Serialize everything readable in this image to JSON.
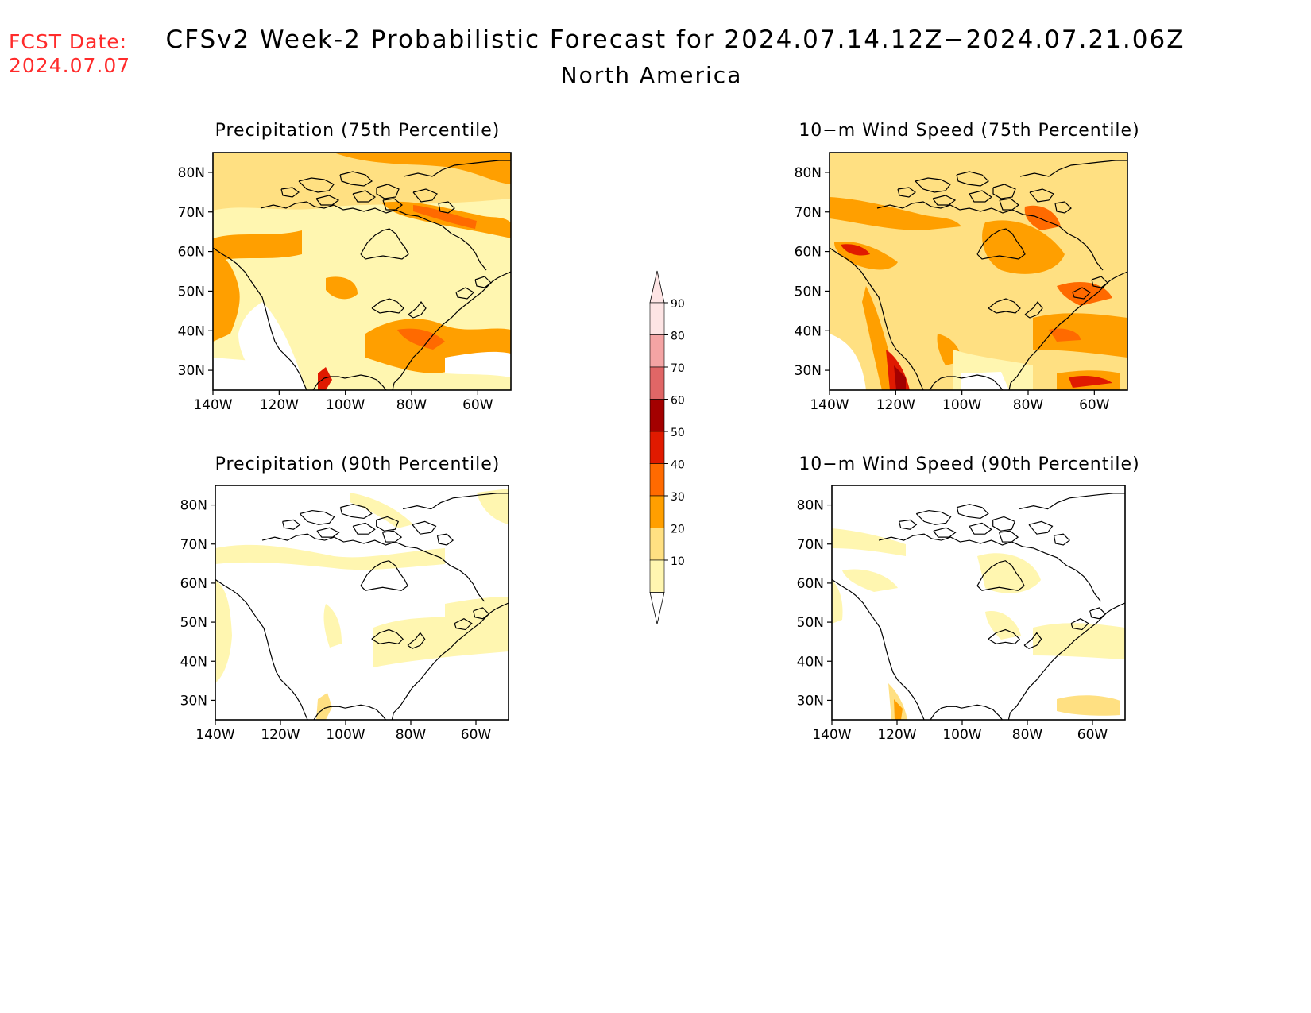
{
  "header": {
    "fcst_label": "FCST Date:",
    "fcst_date": "2024.07.07",
    "title": "CFSv2 Week-2 Probabilistic Forecast for 2024.07.14.12Z−2024.07.21.06Z",
    "subtitle": "North America"
  },
  "panels": [
    {
      "title": "Precipitation (75th Percentile)"
    },
    {
      "title": "10−m Wind Speed (75th Percentile)"
    },
    {
      "title": "Precipitation (90th Percentile)"
    },
    {
      "title": "10−m Wind Speed (90th Percentile)"
    }
  ],
  "axes": {
    "lat_labels": [
      "80N",
      "70N",
      "60N",
      "50N",
      "40N",
      "30N"
    ],
    "lon_labels": [
      "140W",
      "120W",
      "100W",
      "80W",
      "60W"
    ],
    "lat_range": [
      25,
      85
    ],
    "lon_range": [
      -140,
      -50
    ]
  },
  "colorbar": {
    "labels": [
      "90",
      "80",
      "70",
      "60",
      "50",
      "40",
      "30",
      "20",
      "10"
    ],
    "colors": [
      "#fde4e4",
      "#f4a4a4",
      "#e06666",
      "#a30000",
      "#e01a00",
      "#ff6a00",
      "#ff9f00",
      "#ffe082",
      "#fff6b0"
    ]
  }
}
